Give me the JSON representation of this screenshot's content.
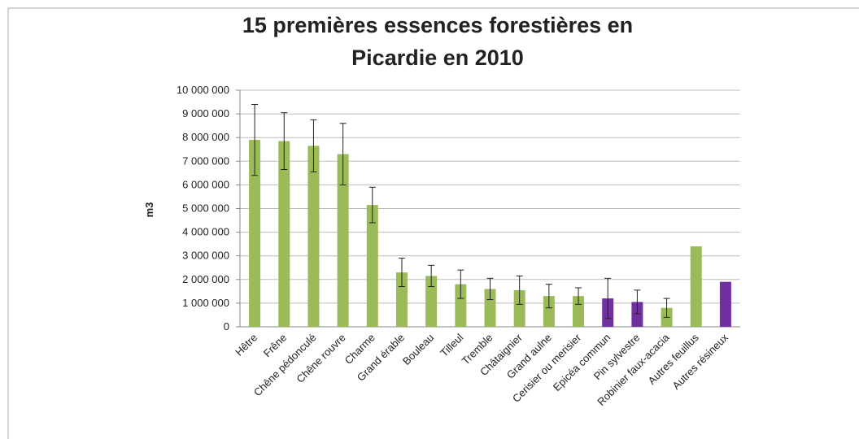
{
  "chart_data": {
    "type": "bar",
    "title": [
      "15 premières essences forestières en",
      "Picardie en 2010"
    ],
    "y_label": "m3",
    "categories": [
      "Hêtre",
      "Frêne",
      "Chêne pédonculé",
      "Chêne rouvre",
      "Charme",
      "Grand érable",
      "Bouleau",
      "Tilleul",
      "Tremble",
      "Châtaignier",
      "Grand aulne",
      "Cerisier ou merisier",
      "Epicéa commun",
      "Pin sylvestre",
      "Robinier faux-acacia",
      "Autres feuillus",
      "Autres résineux"
    ],
    "values": [
      7900000,
      7850000,
      7650000,
      7300000,
      5150000,
      2300000,
      2150000,
      1800000,
      1600000,
      1550000,
      1300000,
      1300000,
      1200000,
      1050000,
      800000,
      3400000,
      1900000
    ],
    "errors": [
      1500000,
      1200000,
      1100000,
      1300000,
      750000,
      600000,
      450000,
      600000,
      450000,
      600000,
      500000,
      350000,
      850000,
      500000,
      400000,
      null,
      null
    ],
    "colors": [
      "#9bbb59",
      "#9bbb59",
      "#9bbb59",
      "#9bbb59",
      "#9bbb59",
      "#9bbb59",
      "#9bbb59",
      "#9bbb59",
      "#9bbb59",
      "#9bbb59",
      "#9bbb59",
      "#9bbb59",
      "#7030a0",
      "#7030a0",
      "#9bbb59",
      "#9bbb59",
      "#7030a0"
    ],
    "ylim": [
      0,
      10000000
    ],
    "yticks": [
      0,
      {
        "value": 1000000,
        "label": "1 000 000"
      },
      {
        "value": 2000000,
        "label": "2 000 000"
      },
      {
        "value": 3000000,
        "label": "3 000 000"
      },
      {
        "value": 4000000,
        "label": "4 000 000"
      },
      {
        "value": 5000000,
        "label": "5 000 000"
      },
      {
        "value": 6000000,
        "label": "6 000 000"
      },
      {
        "value": 7000000,
        "label": "7 000 000"
      },
      {
        "value": 8000000,
        "label": "8 000 000"
      },
      {
        "value": 9000000,
        "label": "9 000 000"
      },
      {
        "value": 10000000,
        "label": "10 000 000"
      }
    ],
    "grid": true
  }
}
